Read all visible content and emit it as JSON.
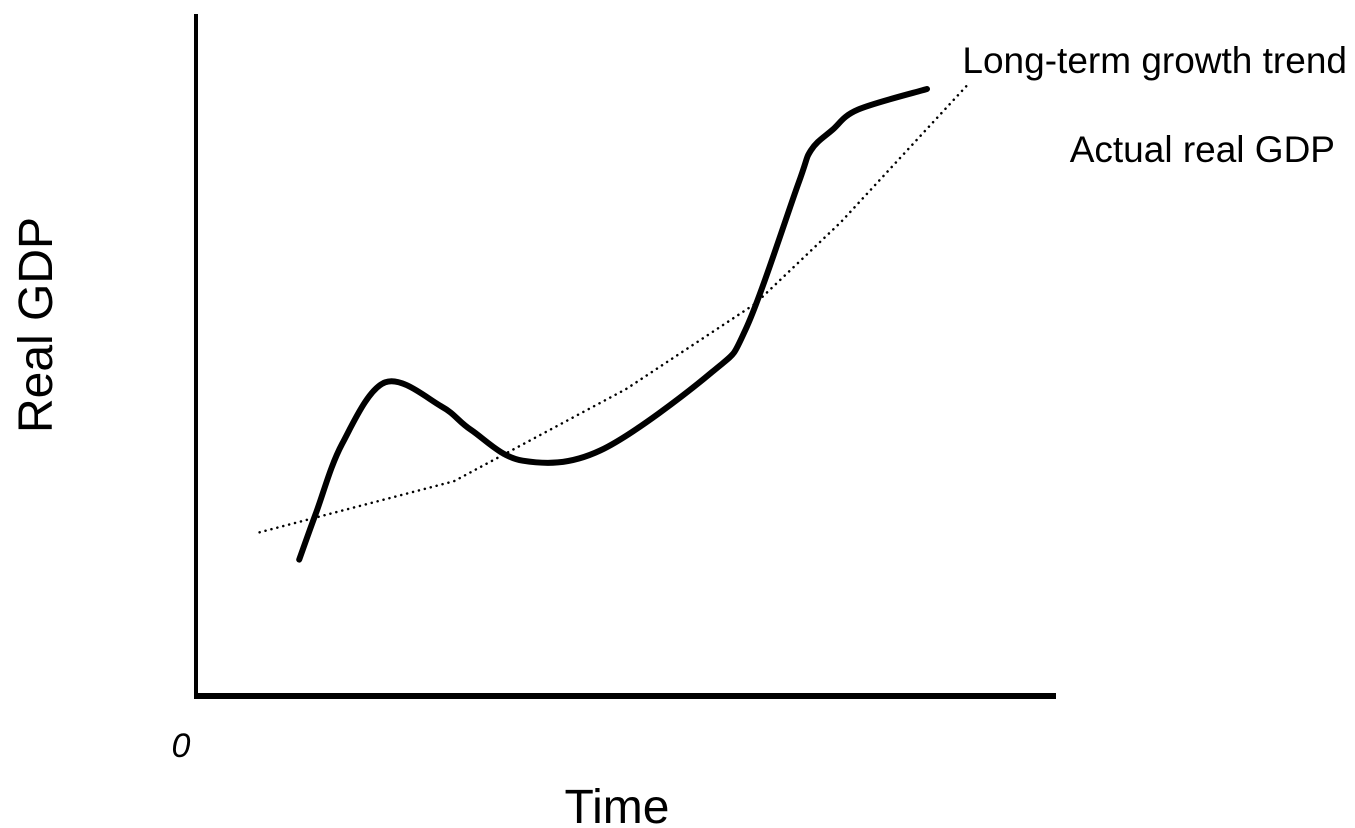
{
  "chart_data": {
    "type": "line",
    "title": "",
    "xlabel": "Time",
    "ylabel": "Real GDP",
    "origin_label": "0",
    "xlim": [
      0,
      100
    ],
    "ylim": [
      0,
      100
    ],
    "grid": false,
    "legend": "none (series labelled directly on the chart)",
    "series": [
      {
        "name": "Long-term growth trend",
        "style": "dotted",
        "color": "#000000",
        "x": [
          7.4,
          30,
          50,
          65,
          75,
          90
        ],
        "y": [
          24,
          31.5,
          45,
          57.5,
          69.5,
          90
        ]
      },
      {
        "name": "Actual real GDP",
        "style": "solid",
        "color": "#000000",
        "x": [
          12,
          14,
          17,
          22,
          28.5,
          32,
          38,
          47,
          60,
          64,
          70,
          71.5,
          74,
          77,
          85
        ],
        "y": [
          20,
          27,
          37,
          46,
          42.5,
          39,
          34.5,
          36,
          47.5,
          54,
          75,
          80,
          83,
          86,
          89
        ]
      }
    ]
  }
}
